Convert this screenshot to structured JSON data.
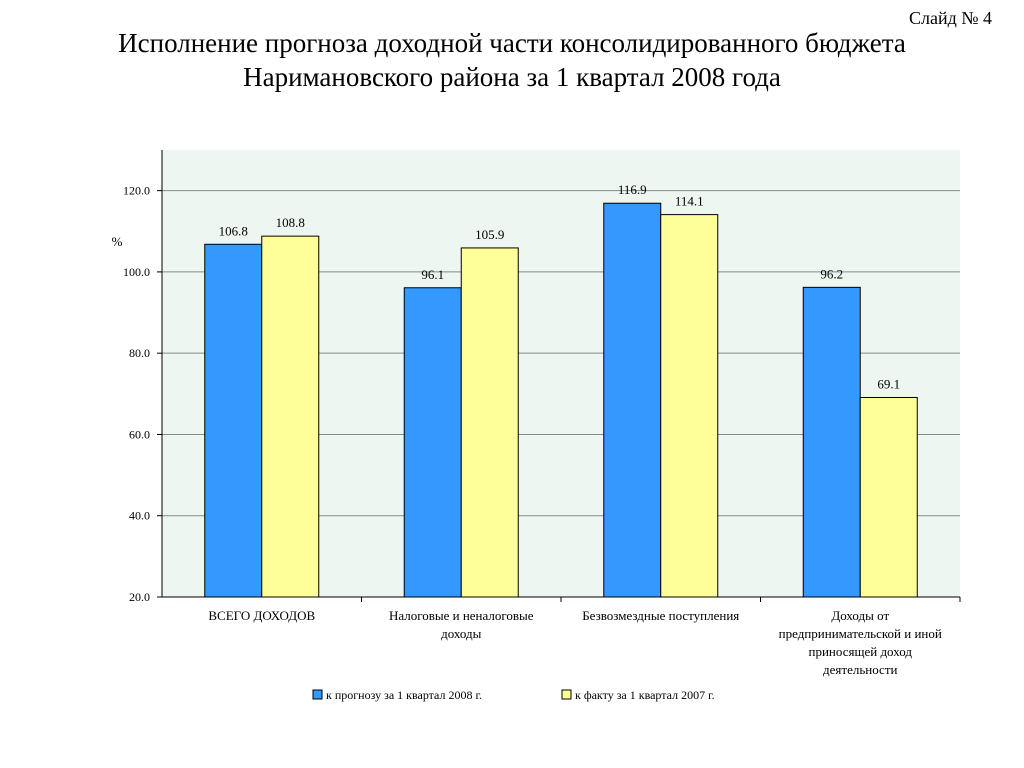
{
  "slide_label": "Слайд № 4",
  "title_lines": [
    "Исполнение прогноза доходной части консолидированного бюджета",
    "Наримановского района за 1 квартал 2008 года"
  ],
  "chart_data": {
    "type": "bar",
    "unit_label": "%",
    "ylim": [
      20,
      130
    ],
    "yticks": [
      "20.0",
      "40.0",
      "60.0",
      "80.0",
      "100.0",
      "120.0"
    ],
    "ytick_values": [
      20,
      40,
      60,
      80,
      100,
      120
    ],
    "grid": true,
    "legend_position": "bottom",
    "categories": [
      [
        "ВСЕГО ДОХОДОВ"
      ],
      [
        "Налоговые и неналоговые",
        "доходы"
      ],
      [
        "Безвозмездные поступления"
      ],
      [
        "Доходы от",
        "предпринимательской и иной",
        "приносящей доход",
        "деятельности"
      ]
    ],
    "series": [
      {
        "name": "к прогнозу за 1 квартал 2008 г.",
        "color": "#3399FF",
        "values": [
          106.8,
          96.1,
          116.9,
          96.2
        ],
        "labels": [
          "106.8",
          "96.1",
          "116.9",
          "96.2"
        ]
      },
      {
        "name": "к факту за 1 квартал 2007 г.",
        "color": "#FFFF99",
        "values": [
          108.8,
          105.9,
          114.1,
          69.1
        ],
        "labels": [
          "108.8",
          "105.9",
          "114.1",
          "69.1"
        ]
      }
    ],
    "colors": {
      "plot_background": "#EEF6F1",
      "gridline": "#7F8C8D",
      "bar_border": "#000000"
    }
  }
}
